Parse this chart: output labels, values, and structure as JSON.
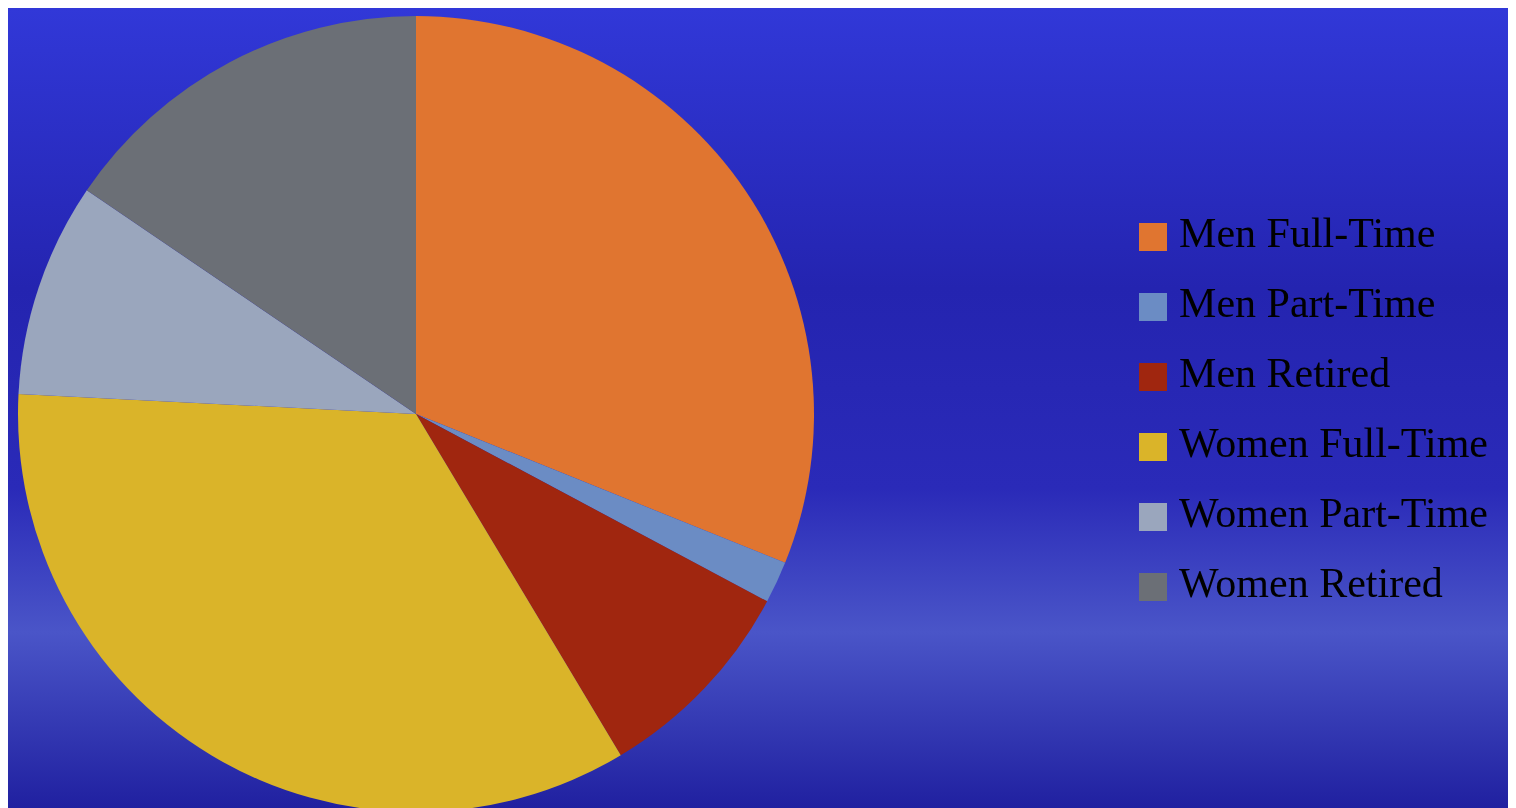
{
  "chart_data": {
    "type": "pie",
    "categories": [
      "Men Full-Time",
      "Men Part-Time",
      "Men Retired",
      "Women Full-Time",
      "Women Part-Time",
      "Women Retired"
    ],
    "values": [
      31.1,
      1.7,
      8.6,
      34.4,
      8.7,
      15.5
    ],
    "colors": [
      "#e07530",
      "#6b8cc4",
      "#a0260f",
      "#dab429",
      "#9aa6bd",
      "#6b6f76"
    ],
    "legend": "right"
  }
}
